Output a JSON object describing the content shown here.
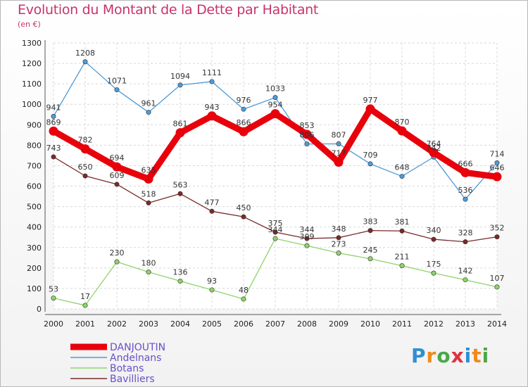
{
  "chart_data": {
    "type": "line",
    "title": "Evolution du Montant de la Dette par Habitant",
    "subtitle": "(en €)",
    "categories": [
      "2000",
      "2001",
      "2002",
      "2003",
      "2004",
      "2005",
      "2006",
      "2007",
      "2008",
      "2009",
      "2010",
      "2011",
      "2012",
      "2013",
      "2014"
    ],
    "ylim": [
      0,
      1300
    ],
    "yticks": [
      "0",
      "100",
      "200",
      "300",
      "400",
      "500",
      "600",
      "700",
      "800",
      "900",
      "1000",
      "1100",
      "1200",
      "1300"
    ],
    "grid": true,
    "legend_position": "bottom-left",
    "series": [
      {
        "name": "DANJOUTIN",
        "color": "#e8000b",
        "values": [
          869,
          782,
          694,
          635,
          861,
          943,
          866,
          954,
          853,
          717,
          977,
          870,
          764,
          666,
          646
        ],
        "labels": [
          "869",
          "782",
          "694",
          "635",
          "861",
          "943",
          "866",
          "954",
          "853",
          "717",
          "977",
          "870",
          "764",
          "666",
          "646"
        ]
      },
      {
        "name": "Andelnans",
        "color": "#4f9bd6",
        "values": [
          941,
          1208,
          1071,
          961,
          1094,
          1111,
          976,
          1033,
          806,
          807,
          709,
          648,
          742,
          536,
          714
        ],
        "labels": [
          "941",
          "1208",
          "1071",
          "961",
          "1094",
          "1111",
          "976",
          "1033",
          "806",
          "807",
          "709",
          "648",
          "742",
          "536",
          "714"
        ]
      },
      {
        "name": "Botans",
        "color": "#8fd36a",
        "values": [
          53,
          17,
          230,
          180,
          136,
          93,
          48,
          344,
          309,
          273,
          245,
          211,
          175,
          142,
          107
        ],
        "labels": [
          "53",
          "17",
          "230",
          "180",
          "136",
          "93",
          "48",
          "344",
          "309",
          "273",
          "245",
          "211",
          "175",
          "142",
          "107"
        ]
      },
      {
        "name": "Bavilliers",
        "color": "#7a2a2a",
        "values": [
          743,
          650,
          609,
          518,
          563,
          477,
          450,
          375,
          344,
          348,
          383,
          381,
          340,
          328,
          352
        ],
        "labels": [
          "743",
          "650",
          "609",
          "518",
          "563",
          "477",
          "450",
          "375",
          "344",
          "348",
          "383",
          "381",
          "340",
          "328",
          "352"
        ]
      }
    ]
  },
  "logo": {
    "text": "Proxiti",
    "colors": [
      "#2f8fd0",
      "#f08a1a",
      "#4aa84a",
      "#e0323c",
      "#2f8fd0",
      "#f08a1a",
      "#4aa84a"
    ]
  }
}
